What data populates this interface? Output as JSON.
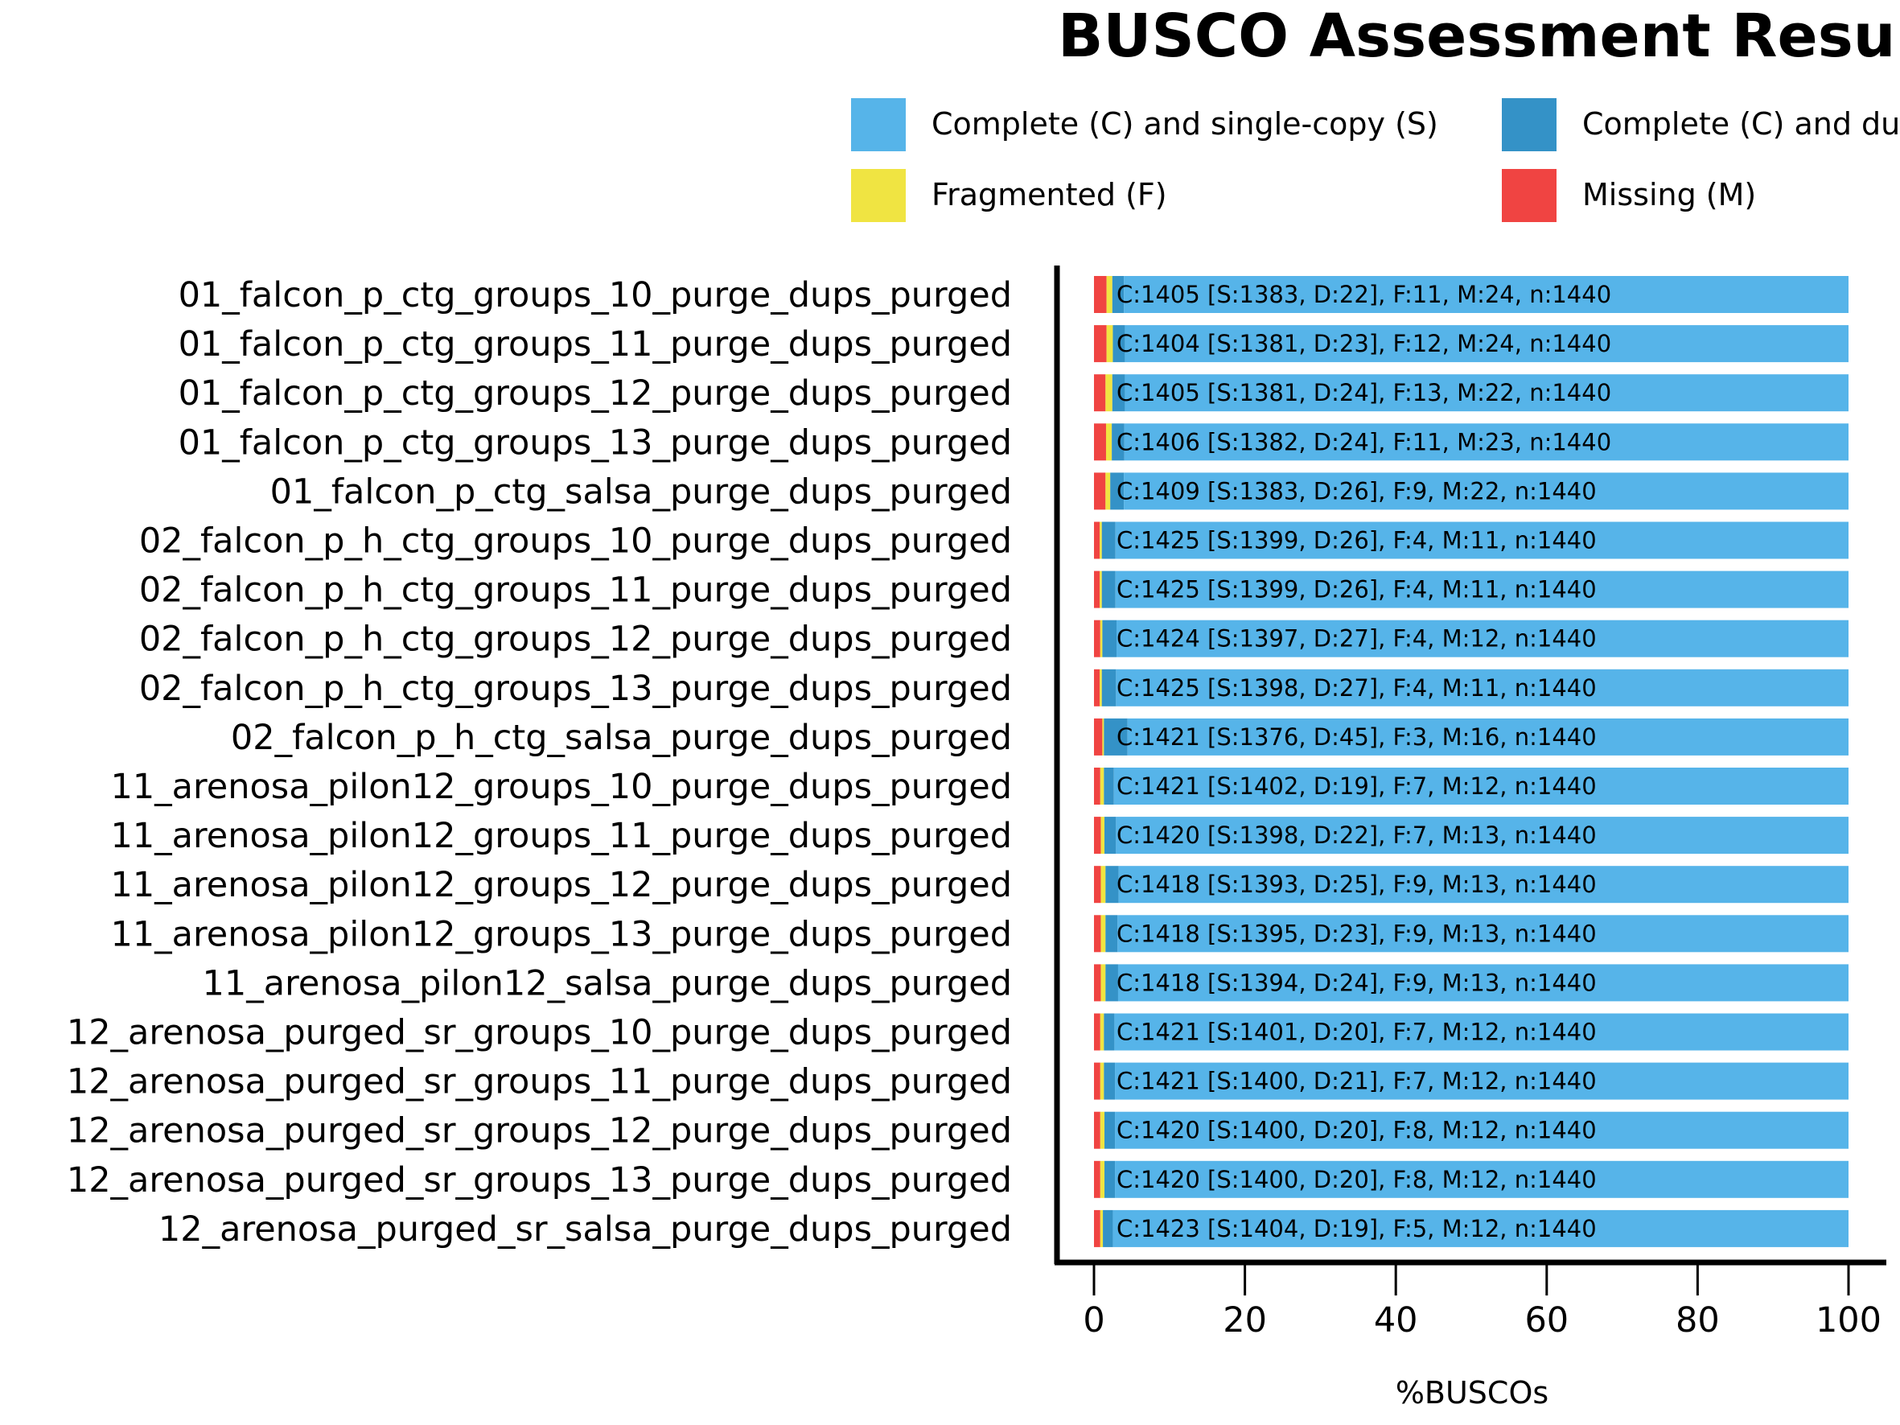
{
  "chart_data": {
    "type": "bar",
    "orientation": "horizontal",
    "stacked": true,
    "title": "BUSCO Assessment Results",
    "xlabel": "%BUSCOs",
    "ylabel": "",
    "xlim": [
      0,
      100
    ],
    "xticks": [
      "0",
      "20",
      "40",
      "60",
      "80",
      "100"
    ],
    "legend_position": "top",
    "grid": false,
    "total": 1440,
    "series": [
      {
        "key": "S",
        "name": "Complete (C) and single-copy (S)",
        "color": "#56B4E9"
      },
      {
        "key": "D",
        "name": "Complete (C) and duplicated (D)",
        "color": "#3492C7"
      },
      {
        "key": "F",
        "name": "Fragmented (F)",
        "color": "#F0E442"
      },
      {
        "key": "M",
        "name": "Missing (M)",
        "color": "#F04442"
      }
    ],
    "rows": [
      {
        "label": "01_falcon_p_ctg_groups_10_purge_dups_purged",
        "S": 1383,
        "D": 22,
        "F": 11,
        "M": 24,
        "text": "C:1405 [S:1383, D:22], F:11, M:24, n:1440"
      },
      {
        "label": "01_falcon_p_ctg_groups_11_purge_dups_purged",
        "S": 1381,
        "D": 23,
        "F": 12,
        "M": 24,
        "text": "C:1404 [S:1381, D:23], F:12, M:24, n:1440"
      },
      {
        "label": "01_falcon_p_ctg_groups_12_purge_dups_purged",
        "S": 1381,
        "D": 24,
        "F": 13,
        "M": 22,
        "text": "C:1405 [S:1381, D:24], F:13, M:22, n:1440"
      },
      {
        "label": "01_falcon_p_ctg_groups_13_purge_dups_purged",
        "S": 1382,
        "D": 24,
        "F": 11,
        "M": 23,
        "text": "C:1406 [S:1382, D:24], F:11, M:23, n:1440"
      },
      {
        "label": "01_falcon_p_ctg_salsa_purge_dups_purged",
        "S": 1383,
        "D": 26,
        "F": 9,
        "M": 22,
        "text": "C:1409 [S:1383, D:26], F:9, M:22, n:1440"
      },
      {
        "label": "02_falcon_p_h_ctg_groups_10_purge_dups_purged",
        "S": 1399,
        "D": 26,
        "F": 4,
        "M": 11,
        "text": "C:1425 [S:1399, D:26], F:4, M:11, n:1440"
      },
      {
        "label": "02_falcon_p_h_ctg_groups_11_purge_dups_purged",
        "S": 1399,
        "D": 26,
        "F": 4,
        "M": 11,
        "text": "C:1425 [S:1399, D:26], F:4, M:11, n:1440"
      },
      {
        "label": "02_falcon_p_h_ctg_groups_12_purge_dups_purged",
        "S": 1397,
        "D": 27,
        "F": 4,
        "M": 12,
        "text": "C:1424 [S:1397, D:27], F:4, M:12, n:1440"
      },
      {
        "label": "02_falcon_p_h_ctg_groups_13_purge_dups_purged",
        "S": 1398,
        "D": 27,
        "F": 4,
        "M": 11,
        "text": "C:1425 [S:1398, D:27], F:4, M:11, n:1440"
      },
      {
        "label": "02_falcon_p_h_ctg_salsa_purge_dups_purged",
        "S": 1376,
        "D": 45,
        "F": 3,
        "M": 16,
        "text": "C:1421 [S:1376, D:45], F:3, M:16, n:1440"
      },
      {
        "label": "11_arenosa_pilon12_groups_10_purge_dups_purged",
        "S": 1402,
        "D": 19,
        "F": 7,
        "M": 12,
        "text": "C:1421 [S:1402, D:19], F:7, M:12, n:1440"
      },
      {
        "label": "11_arenosa_pilon12_groups_11_purge_dups_purged",
        "S": 1398,
        "D": 22,
        "F": 7,
        "M": 13,
        "text": "C:1420 [S:1398, D:22], F:7, M:13, n:1440"
      },
      {
        "label": "11_arenosa_pilon12_groups_12_purge_dups_purged",
        "S": 1393,
        "D": 25,
        "F": 9,
        "M": 13,
        "text": "C:1418 [S:1393, D:25], F:9, M:13, n:1440"
      },
      {
        "label": "11_arenosa_pilon12_groups_13_purge_dups_purged",
        "S": 1395,
        "D": 23,
        "F": 9,
        "M": 13,
        "text": "C:1418 [S:1395, D:23], F:9, M:13, n:1440"
      },
      {
        "label": "11_arenosa_pilon12_salsa_purge_dups_purged",
        "S": 1394,
        "D": 24,
        "F": 9,
        "M": 13,
        "text": "C:1418 [S:1394, D:24], F:9, M:13, n:1440"
      },
      {
        "label": "12_arenosa_purged_sr_groups_10_purge_dups_purged",
        "S": 1401,
        "D": 20,
        "F": 7,
        "M": 12,
        "text": "C:1421 [S:1401, D:20], F:7, M:12, n:1440"
      },
      {
        "label": "12_arenosa_purged_sr_groups_11_purge_dups_purged",
        "S": 1400,
        "D": 21,
        "F": 7,
        "M": 12,
        "text": "C:1421 [S:1400, D:21], F:7, M:12, n:1440"
      },
      {
        "label": "12_arenosa_purged_sr_groups_12_purge_dups_purged",
        "S": 1400,
        "D": 20,
        "F": 8,
        "M": 12,
        "text": "C:1420 [S:1400, D:20], F:8, M:12, n:1440"
      },
      {
        "label": "12_arenosa_purged_sr_groups_13_purge_dups_purged",
        "S": 1400,
        "D": 20,
        "F": 8,
        "M": 12,
        "text": "C:1420 [S:1400, D:20], F:8, M:12, n:1440"
      },
      {
        "label": "12_arenosa_purged_sr_salsa_purge_dups_purged",
        "S": 1404,
        "D": 19,
        "F": 5,
        "M": 12,
        "text": "C:1423 [S:1404, D:19], F:5, M:12, n:1440"
      }
    ]
  }
}
